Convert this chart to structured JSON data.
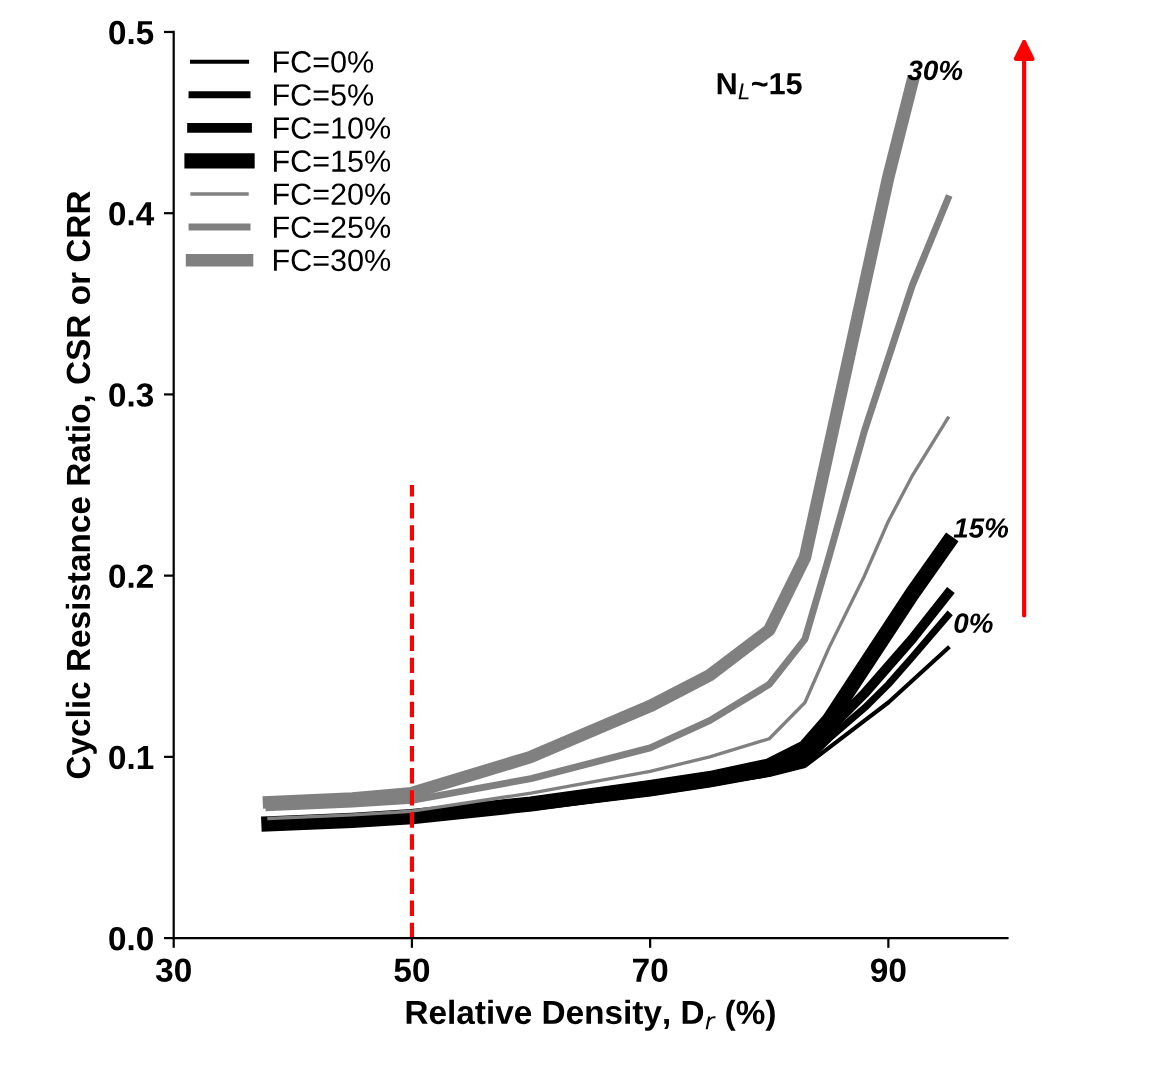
{
  "chart_data": {
    "type": "line",
    "xlabel": "Relative Density, D$_{r}$ (%)",
    "ylabel": "Cyclic Resistance Ratio, CSR or CRR",
    "xlim": [
      30,
      100
    ],
    "xticks": [
      30,
      50,
      70,
      90
    ],
    "ylim": [
      0,
      0.5
    ],
    "yticks": [
      {
        "value": 0,
        "label": "0.0"
      },
      0.1,
      0.2,
      0.3,
      0.4,
      0.5
    ],
    "grid": false,
    "legend": "top left",
    "marker": "none",
    "line_style": "solid",
    "x": [
      38,
      45,
      50,
      60,
      70,
      75,
      80,
      83,
      85,
      88,
      90,
      92,
      95
    ],
    "series": [
      {
        "name": "FC=0%",
        "color": "#000000",
        "values": [
          0.062,
          0.064,
          0.066,
          0.072,
          0.08,
          0.085,
          0.09,
          0.095,
          0.105,
          0.12,
          0.13,
          0.142,
          0.16
        ]
      },
      {
        "name": "FC=5%",
        "color": "#000000",
        "values": [
          0.062,
          0.064,
          0.066,
          0.072,
          0.08,
          0.085,
          0.091,
          0.097,
          0.11,
          0.127,
          0.14,
          0.155,
          0.178
        ]
      },
      {
        "name": "FC=10%",
        "color": "#000000",
        "values": [
          0.062,
          0.064,
          0.066,
          0.073,
          0.081,
          0.086,
          0.092,
          0.099,
          0.115,
          0.135,
          0.15,
          0.165,
          0.19
        ]
      },
      {
        "name": "FC=15%",
        "color": "#000000",
        "values": [
          0.063,
          0.065,
          0.067,
          0.074,
          0.083,
          0.088,
          0.095,
          0.105,
          0.12,
          0.15,
          0.17,
          0.19,
          0.218
        ]
      },
      {
        "name": "FC=20%",
        "color": "#808080",
        "values": [
          0.066,
          0.068,
          0.07,
          0.08,
          0.092,
          0.1,
          0.11,
          0.13,
          0.16,
          0.2,
          0.23,
          0.255,
          0.287
        ]
      },
      {
        "name": "FC=25%",
        "color": "#808080",
        "values": [
          0.072,
          0.074,
          0.076,
          0.088,
          0.105,
          0.12,
          0.14,
          0.165,
          0.21,
          0.28,
          0.32,
          0.36,
          0.408
        ]
      },
      {
        "name": "FC=30%",
        "color": "#808080",
        "values": [
          0.075,
          0.077,
          0.08,
          0.1,
          0.128,
          0.145,
          0.17,
          0.21,
          0.27,
          0.36,
          0.42,
          0.472,
          null
        ]
      }
    ],
    "ref_lines": [
      {
        "axis": "x",
        "value": 50,
        "color": "#ff0000",
        "line_style": "dashed"
      }
    ],
    "annotations": [
      "N$_{L}$~15",
      "30%",
      "15%",
      "0%"
    ]
  }
}
